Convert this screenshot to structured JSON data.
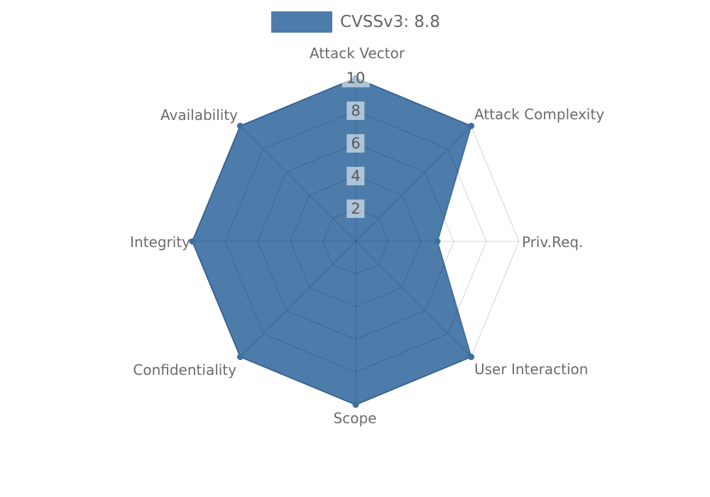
{
  "legend": {
    "label": "CVSSv3: 8.8"
  },
  "chart_data": {
    "type": "radar",
    "title": "",
    "legend_entries": [
      "CVSSv3: 8.8"
    ],
    "legend_position": "top-center",
    "categories": [
      "Attack Vector",
      "Attack Complexity",
      "Priv.Req.",
      "User Interaction",
      "Scope",
      "Confidentiality",
      "Integrity",
      "Availability"
    ],
    "series": [
      {
        "name": "CVSSv3: 8.8",
        "values": [
          10,
          10,
          5,
          10,
          10,
          10,
          10,
          10
        ]
      }
    ],
    "ticks": [
      "2",
      "4",
      "6",
      "8",
      "10"
    ],
    "rlim": [
      0,
      10
    ],
    "grid": true,
    "grid_shape": "octagon",
    "colors": {
      "fill": "#4d7cab",
      "line": "#3f6f9f",
      "marker": "#3f6f9f",
      "grid_line": "rgba(0,0,0,0.17)",
      "axis_label": "#6b6b6b",
      "tick_label": "#595959",
      "tick_label_bg": "rgba(255,255,255,0.55)",
      "legend_text": "#666666",
      "background": "#ffffff"
    }
  }
}
